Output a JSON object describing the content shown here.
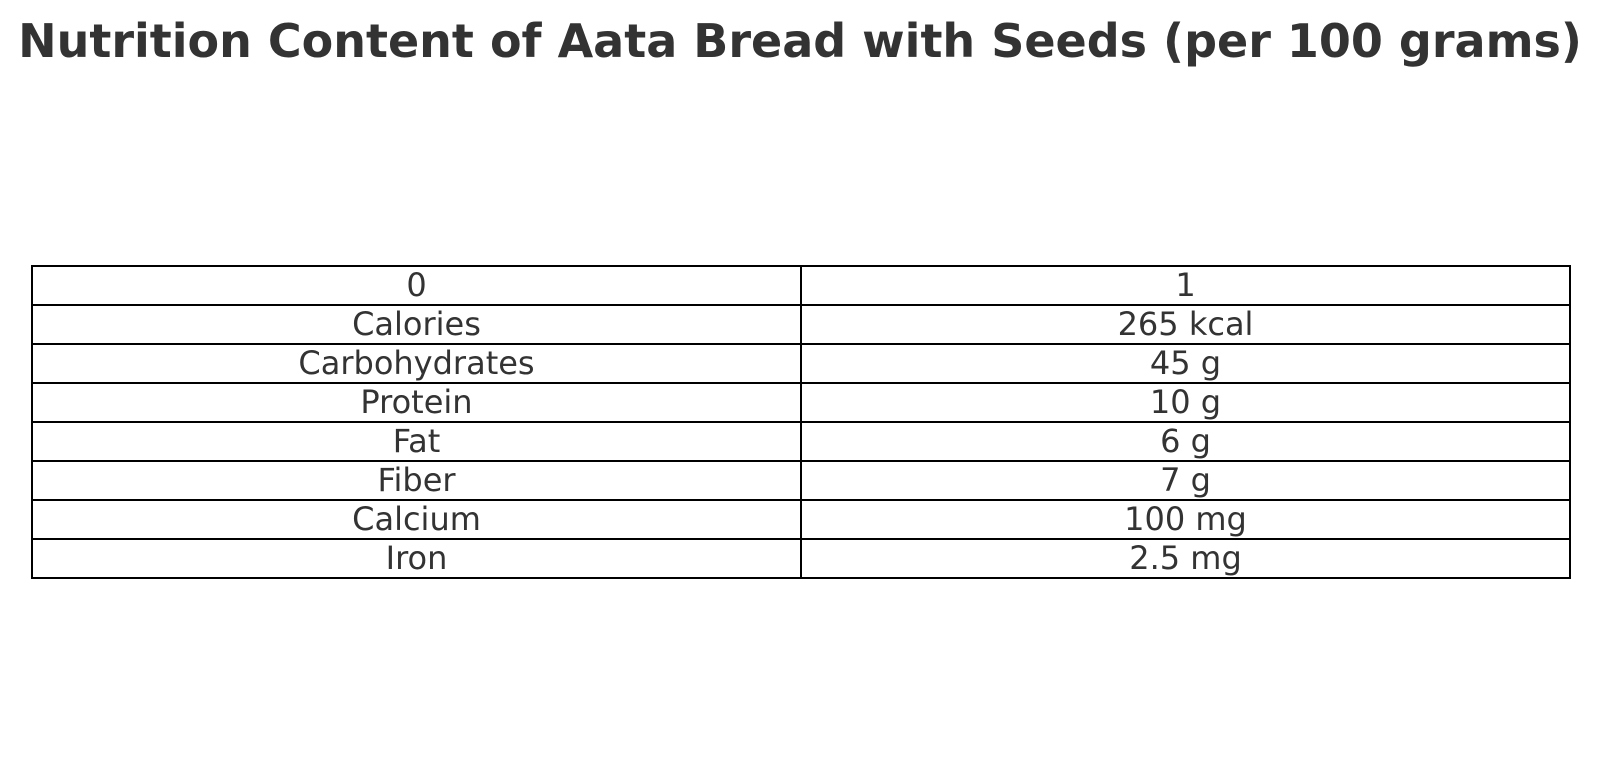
{
  "title": "Nutrition Content of Aata Bread with Seeds (per 100 grams)",
  "chart_data": {
    "type": "table",
    "title": "Nutrition Content of Aata Bread with Seeds (per 100 grams)",
    "columns": [
      "0",
      "1"
    ],
    "rows": [
      [
        "Calories",
        "265 kcal"
      ],
      [
        "Carbohydrates",
        "45 g"
      ],
      [
        "Protein",
        "10 g"
      ],
      [
        "Fat",
        "6 g"
      ],
      [
        "Fiber",
        "7 g"
      ],
      [
        "Calcium",
        "100 mg"
      ],
      [
        "Iron",
        "2.5 mg"
      ]
    ]
  }
}
